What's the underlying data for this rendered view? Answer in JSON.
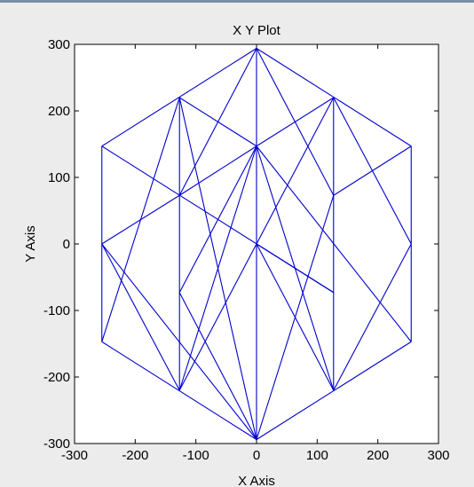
{
  "chart_data": {
    "type": "line",
    "title": "X Y Plot",
    "xlabel": "X Axis",
    "ylabel": "Y Axis",
    "xlim": [
      -300,
      300
    ],
    "ylim": [
      -300,
      300
    ],
    "xticks": [
      -300,
      -200,
      -100,
      0,
      100,
      200,
      300
    ],
    "yticks": [
      -300,
      -200,
      -100,
      0,
      100,
      200,
      300
    ],
    "grid": false,
    "line_color": "#0000cc",
    "series": [
      {
        "segments": [
          [
            [
              0,
              294
            ],
            [
              255,
              147
            ]
          ],
          [
            [
              255,
              147
            ],
            [
              255,
              -147
            ]
          ],
          [
            [
              255,
              -147
            ],
            [
              0,
              -294
            ]
          ],
          [
            [
              0,
              -294
            ],
            [
              -255,
              -147
            ]
          ],
          [
            [
              -255,
              -147
            ],
            [
              -255,
              147
            ]
          ],
          [
            [
              -255,
              147
            ],
            [
              0,
              294
            ]
          ],
          [
            [
              -127,
              220
            ],
            [
              -127,
              -220
            ]
          ],
          [
            [
              127,
              220
            ],
            [
              127,
              -220
            ]
          ],
          [
            [
              0,
              294
            ],
            [
              0,
              -294
            ]
          ],
          [
            [
              -127,
              220
            ],
            [
              0,
              147
            ]
          ],
          [
            [
              0,
              147
            ],
            [
              127,
              220
            ]
          ],
          [
            [
              -255,
              147
            ],
            [
              127,
              -73
            ]
          ],
          [
            [
              -127,
              73
            ],
            [
              0,
              147
            ]
          ],
          [
            [
              0,
              0
            ],
            [
              127,
              -73
            ]
          ],
          [
            [
              0,
              294
            ],
            [
              -127,
              73
            ]
          ],
          [
            [
              -127,
              73
            ],
            [
              -255,
              0
            ]
          ],
          [
            [
              0,
              294
            ],
            [
              127,
              73
            ]
          ],
          [
            [
              127,
              73
            ],
            [
              255,
              147
            ]
          ],
          [
            [
              -255,
              0
            ],
            [
              -127,
              -220
            ]
          ],
          [
            [
              -255,
              0
            ],
            [
              0,
              -294
            ]
          ],
          [
            [
              -255,
              -147
            ],
            [
              -127,
              220
            ]
          ],
          [
            [
              -127,
              -220
            ],
            [
              0,
              147
            ]
          ],
          [
            [
              -127,
              -73
            ],
            [
              0,
              147
            ]
          ],
          [
            [
              -127,
              -73
            ],
            [
              0,
              -294
            ]
          ],
          [
            [
              0,
              147
            ],
            [
              127,
              -220
            ]
          ],
          [
            [
              0,
              147
            ],
            [
              255,
              -147
            ]
          ],
          [
            [
              -127,
              -220
            ],
            [
              127,
              220
            ]
          ],
          [
            [
              127,
              220
            ],
            [
              255,
              0
            ]
          ],
          [
            [
              255,
              0
            ],
            [
              127,
              -220
            ]
          ],
          [
            [
              127,
              -220
            ],
            [
              0,
              0
            ]
          ],
          [
            [
              -127,
              220
            ],
            [
              0,
              -294
            ]
          ],
          [
            [
              127,
              73
            ],
            [
              0,
              -294
            ]
          ]
        ]
      }
    ]
  }
}
